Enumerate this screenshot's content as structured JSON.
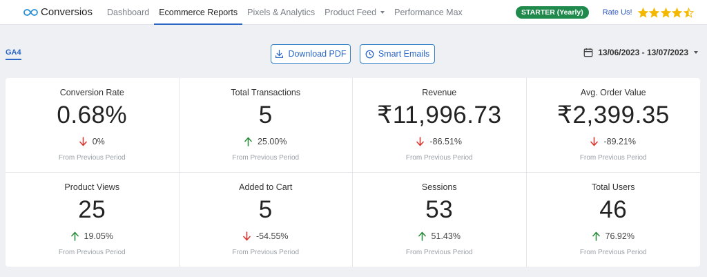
{
  "brand": {
    "name": "Conversios"
  },
  "nav": {
    "items": [
      {
        "label": "Dashboard"
      },
      {
        "label": "Ecommerce Reports"
      },
      {
        "label": "Pixels & Analytics"
      },
      {
        "label": "Product Feed"
      },
      {
        "label": "Performance Max"
      }
    ],
    "active_index": 1
  },
  "header_right": {
    "plan_badge": "STARTER (Yearly)",
    "rate_label": "Rate Us!",
    "rating_stars": 4.5,
    "colors": {
      "badge": "#1f8a4c",
      "star": "#f5b800"
    }
  },
  "toolbar": {
    "tab_label": "GA4",
    "download_label": "Download PDF",
    "email_label": "Smart Emails",
    "date_range": "13/06/2023 - 13/07/2023"
  },
  "metrics": [
    {
      "title": "Conversion Rate",
      "value": "0.68%",
      "change": "0%",
      "direction": "down",
      "note": "From Previous Period"
    },
    {
      "title": "Total Transactions",
      "value": "5",
      "change": "25.00%",
      "direction": "up",
      "note": "From Previous Period"
    },
    {
      "title": "Revenue",
      "value": "₹11,996.73",
      "change": "-86.51%",
      "direction": "down",
      "note": "From Previous Period"
    },
    {
      "title": "Avg. Order Value",
      "value": "₹2,399.35",
      "change": "-89.21%",
      "direction": "down",
      "note": "From Previous Period"
    },
    {
      "title": "Product Views",
      "value": "25",
      "change": "19.05%",
      "direction": "up",
      "note": "From Previous Period"
    },
    {
      "title": "Added to Cart",
      "value": "5",
      "change": "-54.55%",
      "direction": "down",
      "note": "From Previous Period"
    },
    {
      "title": "Sessions",
      "value": "53",
      "change": "51.43%",
      "direction": "up",
      "note": "From Previous Period"
    },
    {
      "title": "Total Users",
      "value": "46",
      "change": "76.92%",
      "direction": "up",
      "note": "From Previous Period"
    }
  ],
  "colors": {
    "up_arrow": "#2e8b3e",
    "down_arrow": "#d9362f",
    "accent": "#2a66c6"
  }
}
